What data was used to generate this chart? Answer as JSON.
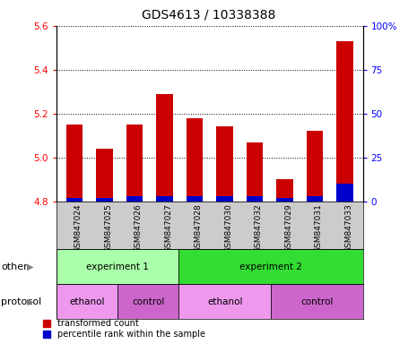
{
  "title": "GDS4613 / 10338388",
  "samples": [
    "GSM847024",
    "GSM847025",
    "GSM847026",
    "GSM847027",
    "GSM847028",
    "GSM847030",
    "GSM847032",
    "GSM847029",
    "GSM847031",
    "GSM847033"
  ],
  "transformed_count": [
    5.15,
    5.04,
    5.15,
    5.29,
    5.18,
    5.14,
    5.07,
    4.9,
    5.12,
    5.53
  ],
  "percentile_rank": [
    2,
    2,
    3,
    3,
    3,
    3,
    3,
    2,
    3,
    10
  ],
  "ylim": [
    4.8,
    5.6
  ],
  "yticks": [
    4.8,
    5.0,
    5.2,
    5.4,
    5.6
  ],
  "right_yticks": [
    0,
    25,
    50,
    75,
    100
  ],
  "bar_bottom": 4.8,
  "bar_color_red": "#cc0000",
  "bar_color_blue": "#0000cc",
  "groups_other": [
    {
      "label": "experiment 1",
      "start": 0,
      "end": 4,
      "color": "#aaffaa"
    },
    {
      "label": "experiment 2",
      "start": 4,
      "end": 10,
      "color": "#33dd33"
    }
  ],
  "groups_protocol": [
    {
      "label": "ethanol",
      "start": 0,
      "end": 2,
      "color": "#ee99ee"
    },
    {
      "label": "control",
      "start": 2,
      "end": 4,
      "color": "#cc66cc"
    },
    {
      "label": "ethanol",
      "start": 4,
      "end": 7,
      "color": "#ee99ee"
    },
    {
      "label": "control",
      "start": 7,
      "end": 10,
      "color": "#cc66cc"
    }
  ],
  "sample_area_color": "#cccccc",
  "title_fontsize": 10,
  "tick_fontsize": 7.5,
  "bar_label_fontsize": 6.5,
  "group_fontsize": 7.5,
  "legend_fontsize": 7
}
